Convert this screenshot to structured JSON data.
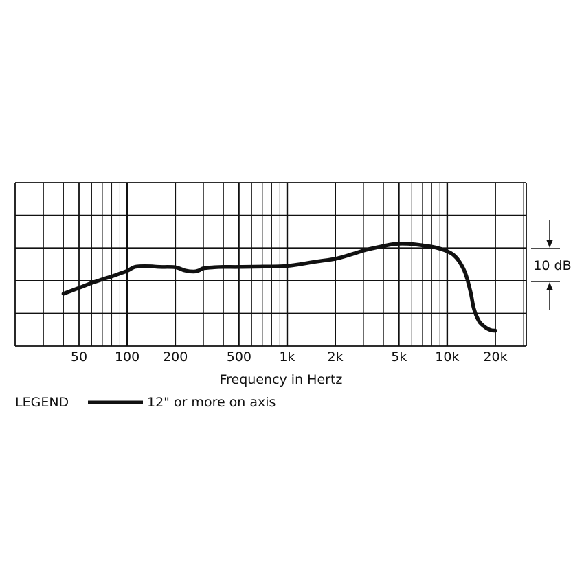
{
  "chart_data": {
    "type": "line",
    "title": "",
    "xlabel": "Frequency in Hertz",
    "ylabel": "",
    "x_scale": "log",
    "xlim": [
      20,
      27000
    ],
    "ylim": [
      -25,
      25
    ],
    "y_grid_step_db": 10,
    "grid": true,
    "x_ticks": [
      {
        "value": 50,
        "label": "50"
      },
      {
        "value": 100,
        "label": "100"
      },
      {
        "value": 200,
        "label": "200"
      },
      {
        "value": 500,
        "label": "500"
      },
      {
        "value": 1000,
        "label": "1k"
      },
      {
        "value": 2000,
        "label": "2k"
      },
      {
        "value": 5000,
        "label": "5k"
      },
      {
        "value": 10000,
        "label": "10k"
      },
      {
        "value": 20000,
        "label": "20k"
      }
    ],
    "scale_bar_label": "10 dB",
    "legend": {
      "placement": "bottom-left",
      "title": "LEGEND",
      "entries": [
        {
          "label": "12\" or more on axis"
        }
      ]
    },
    "series": [
      {
        "name": "12\" or more on axis",
        "color": "#111111",
        "x": [
          40,
          50,
          60,
          70,
          80,
          90,
          100,
          110,
          120,
          140,
          160,
          200,
          230,
          260,
          280,
          300,
          350,
          400,
          500,
          700,
          1000,
          1500,
          2000,
          2500,
          3000,
          3500,
          4000,
          4500,
          5000,
          5500,
          6000,
          7000,
          8000,
          9000,
          10000,
          11000,
          12000,
          13000,
          14000,
          14500,
          15000,
          15500,
          16000,
          17000,
          18000,
          19000,
          20000
        ],
        "y": [
          -9,
          -7.2,
          -5.7,
          -4.6,
          -3.7,
          -2.8,
          -2.0,
          -0.9,
          -0.6,
          -0.6,
          -0.8,
          -0.9,
          -1.9,
          -2.2,
          -1.9,
          -1.2,
          -0.9,
          -0.8,
          -0.8,
          -0.7,
          -0.5,
          0.8,
          1.7,
          3.0,
          4.2,
          5.0,
          5.6,
          6.1,
          6.3,
          6.3,
          6.2,
          5.8,
          5.4,
          4.8,
          4.0,
          2.8,
          0.6,
          -2.8,
          -8.5,
          -12.5,
          -15.0,
          -16.6,
          -17.8,
          -19.0,
          -19.8,
          -20.2,
          -20.3
        ]
      }
    ]
  }
}
